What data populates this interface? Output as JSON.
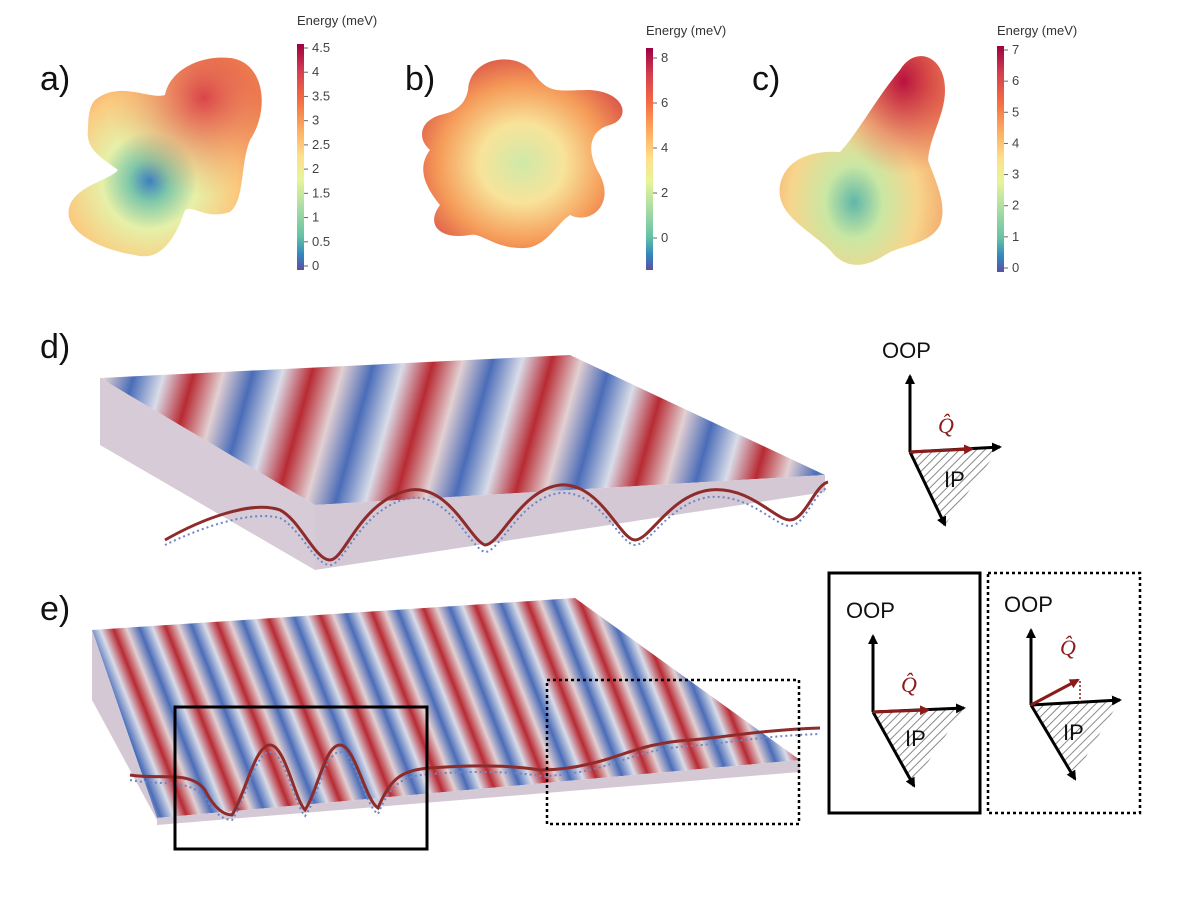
{
  "panels": {
    "a": {
      "label": "a)",
      "colorbar": {
        "title": "Energy (meV)",
        "ticks": [
          "4.5",
          "4",
          "3.5",
          "3",
          "2.5",
          "2",
          "1.5",
          "1",
          "0.5",
          "0"
        ]
      }
    },
    "b": {
      "label": "b)",
      "colorbar": {
        "title": "Energy (meV)",
        "ticks": [
          "8",
          "6",
          "4",
          "2",
          "0"
        ]
      }
    },
    "c": {
      "label": "c)",
      "colorbar": {
        "title": "Energy (meV)",
        "ticks": [
          "7",
          "6",
          "5",
          "4",
          "3",
          "2",
          "1",
          "0"
        ]
      }
    },
    "d": {
      "label": "d)",
      "axes": {
        "oop": "OOP",
        "ip": "IP",
        "q": "Q̂"
      }
    },
    "e": {
      "label": "e)",
      "inset_solid": {
        "oop": "OOP",
        "ip": "IP",
        "q": "Q̂"
      },
      "inset_dotted": {
        "oop": "OOP",
        "ip": "IP",
        "q": "Q̂"
      }
    }
  },
  "colors": {
    "red": "#b2182b",
    "blue": "#3d5fb0",
    "q_arrow": "#8b1a1a"
  }
}
